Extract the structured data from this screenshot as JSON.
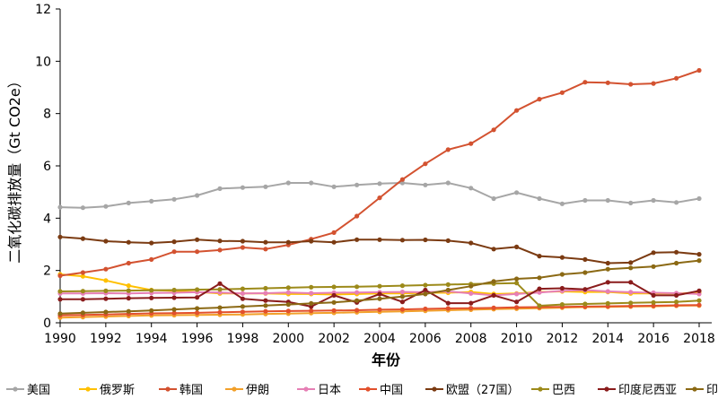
{
  "chart_data": {
    "type": "line",
    "title": "",
    "xlabel": "年份",
    "ylabel": "二氧化碳排放量（Gt CO2e）",
    "xlim": [
      1990,
      2018
    ],
    "ylim": [
      0,
      12
    ],
    "x_ticks": [
      "1990",
      "1992",
      "1994",
      "1996",
      "1998",
      "2000",
      "2002",
      "2004",
      "2006",
      "2008",
      "2010",
      "2012",
      "2014",
      "2016",
      "2018"
    ],
    "y_ticks": [
      "0",
      "2",
      "4",
      "6",
      "8",
      "10",
      "12"
    ],
    "grid": false,
    "legend_position": "bottom",
    "x": [
      1990,
      1991,
      1992,
      1993,
      1994,
      1995,
      1996,
      1997,
      1998,
      1999,
      2000,
      2001,
      2002,
      2003,
      2004,
      2005,
      2006,
      2007,
      2008,
      2009,
      2010,
      2011,
      2012,
      2013,
      2014,
      2015,
      2016,
      2017,
      2018
    ],
    "series": [
      {
        "name": "美国",
        "color": "#a6a6a6",
        "values": [
          4.42,
          4.4,
          4.45,
          4.58,
          4.65,
          4.72,
          4.87,
          5.13,
          5.17,
          5.2,
          5.35,
          5.35,
          5.2,
          5.27,
          5.32,
          5.35,
          5.27,
          5.35,
          5.15,
          4.75,
          4.98,
          4.75,
          4.55,
          4.68,
          4.68,
          4.58,
          4.68,
          4.6,
          4.75
        ]
      },
      {
        "name": "俄罗斯",
        "color": "#ffc000",
        "values": [
          1.85,
          1.78,
          1.62,
          1.42,
          1.25,
          1.22,
          1.18,
          1.12,
          1.12,
          1.12,
          1.1,
          1.1,
          1.08,
          1.1,
          1.12,
          1.12,
          1.15,
          1.15,
          1.18,
          1.1,
          1.12,
          1.18,
          1.2,
          1.18,
          1.18,
          1.12,
          1.12,
          1.12,
          1.15
        ]
      },
      {
        "name": "韩国",
        "color": "#d35230",
        "values": [
          1.8,
          1.92,
          2.05,
          2.28,
          2.42,
          2.72,
          2.72,
          2.78,
          2.88,
          2.82,
          2.98,
          3.2,
          3.45,
          4.08,
          4.78,
          5.48,
          6.08,
          6.62,
          6.85,
          7.38,
          8.12,
          8.55,
          8.8,
          9.2,
          9.18,
          9.12,
          9.15,
          9.35,
          9.65
        ]
      },
      {
        "name": "伊朗",
        "color": "#f2a02a",
        "values": [
          0.2,
          0.22,
          0.24,
          0.26,
          0.28,
          0.29,
          0.3,
          0.31,
          0.32,
          0.34,
          0.35,
          0.37,
          0.38,
          0.4,
          0.42,
          0.44,
          0.46,
          0.48,
          0.5,
          0.52,
          0.54,
          0.56,
          0.58,
          0.6,
          0.61,
          0.62,
          0.63,
          0.65,
          0.66
        ]
      },
      {
        "name": "日本",
        "color": "#e67fb5",
        "values": [
          1.12,
          1.12,
          1.13,
          1.12,
          1.14,
          1.15,
          1.17,
          1.16,
          1.12,
          1.13,
          1.16,
          1.13,
          1.15,
          1.16,
          1.17,
          1.18,
          1.17,
          1.2,
          1.12,
          1.05,
          1.1,
          1.16,
          1.22,
          1.25,
          1.2,
          1.17,
          1.15,
          1.13,
          1.1
        ]
      },
      {
        "name": "中国",
        "color": "#e2502c",
        "values": [
          0.28,
          0.3,
          0.32,
          0.34,
          0.36,
          0.37,
          0.38,
          0.4,
          0.42,
          0.44,
          0.45,
          0.46,
          0.47,
          0.48,
          0.5,
          0.51,
          0.53,
          0.55,
          0.56,
          0.57,
          0.59,
          0.6,
          0.61,
          0.62,
          0.63,
          0.64,
          0.65,
          0.67,
          0.68
        ]
      },
      {
        "name": "欧盟（27国）",
        "color": "#7b3b12",
        "values": [
          3.28,
          3.22,
          3.12,
          3.08,
          3.05,
          3.1,
          3.18,
          3.13,
          3.12,
          3.08,
          3.08,
          3.12,
          3.08,
          3.18,
          3.18,
          3.16,
          3.17,
          3.14,
          3.05,
          2.82,
          2.9,
          2.55,
          2.5,
          2.42,
          2.28,
          2.3,
          2.68,
          2.7,
          2.62
        ]
      },
      {
        "name": "巴西",
        "color": "#9c8a1a",
        "values": [
          1.2,
          1.21,
          1.22,
          1.23,
          1.24,
          1.25,
          1.27,
          1.28,
          1.3,
          1.32,
          1.34,
          1.36,
          1.37,
          1.38,
          1.4,
          1.42,
          1.44,
          1.46,
          1.48,
          1.5,
          1.52,
          0.65,
          0.7,
          0.72,
          0.74,
          0.76,
          0.78,
          0.8,
          0.85
        ]
      },
      {
        "name": "印度尼西亚",
        "color": "#8a1c1c",
        "values": [
          0.9,
          0.9,
          0.92,
          0.94,
          0.95,
          0.96,
          0.97,
          1.5,
          0.92,
          0.85,
          0.8,
          0.62,
          1.05,
          0.78,
          1.1,
          0.8,
          1.25,
          0.75,
          0.75,
          1.05,
          0.8,
          1.3,
          1.32,
          1.28,
          1.55,
          1.55,
          1.05,
          1.05,
          1.22
        ]
      },
      {
        "name": "印度",
        "color": "#8b6914",
        "values": [
          0.35,
          0.38,
          0.41,
          0.44,
          0.47,
          0.51,
          0.55,
          0.58,
          0.62,
          0.66,
          0.7,
          0.74,
          0.78,
          0.85,
          0.92,
          1.0,
          1.1,
          1.25,
          1.4,
          1.58,
          1.68,
          1.72,
          1.85,
          1.92,
          2.05,
          2.1,
          2.15,
          2.28,
          2.38
        ]
      }
    ]
  }
}
